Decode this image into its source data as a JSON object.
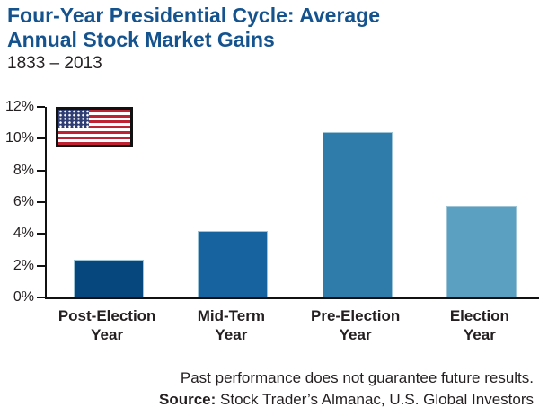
{
  "header": {
    "title": "Four-Year Presidential Cycle: Average\nAnnual Stock Market Gains",
    "subtitle": "1833 – 2013"
  },
  "footer": {
    "disclaimer": "Past performance does not guarantee future results.",
    "source_label": "Source:",
    "source_text": " Stock Trader’s Almanac, U.S. Global Investors"
  },
  "icons": {
    "flag": "us-flag-icon"
  },
  "colors": {
    "title_blue": "#15538f",
    "axis": "#111111",
    "text": "#231f20",
    "bar_border": "#9ec4d8",
    "flag_red": "#bf2333",
    "flag_blue": "#2f3d73",
    "bars": [
      "#06477d",
      "#17639f",
      "#2f7cab",
      "#5b9fc1"
    ]
  },
  "chart_data": {
    "type": "bar",
    "title": "Four-Year Presidential Cycle: Average Annual Stock Market Gains",
    "subtitle": "1833 – 2013",
    "categories": [
      "Post-Election Year",
      "Mid-Term Year",
      "Pre-Election Year",
      "Election Year"
    ],
    "categories_display": [
      "Post-Election\nYear",
      "Mid-Term\nYear",
      "Pre-Election\nYear",
      "Election\nYear"
    ],
    "values": [
      2.4,
      4.2,
      10.4,
      5.8
    ],
    "unit": "%",
    "xlabel": "",
    "ylabel": "",
    "ylim": [
      0,
      12
    ],
    "yticks": [
      0,
      2,
      4,
      6,
      8,
      10,
      12
    ],
    "ytick_labels": [
      "0%",
      "2%",
      "4%",
      "6%",
      "8%",
      "10%",
      "12%"
    ],
    "grid": false,
    "legend": false
  }
}
